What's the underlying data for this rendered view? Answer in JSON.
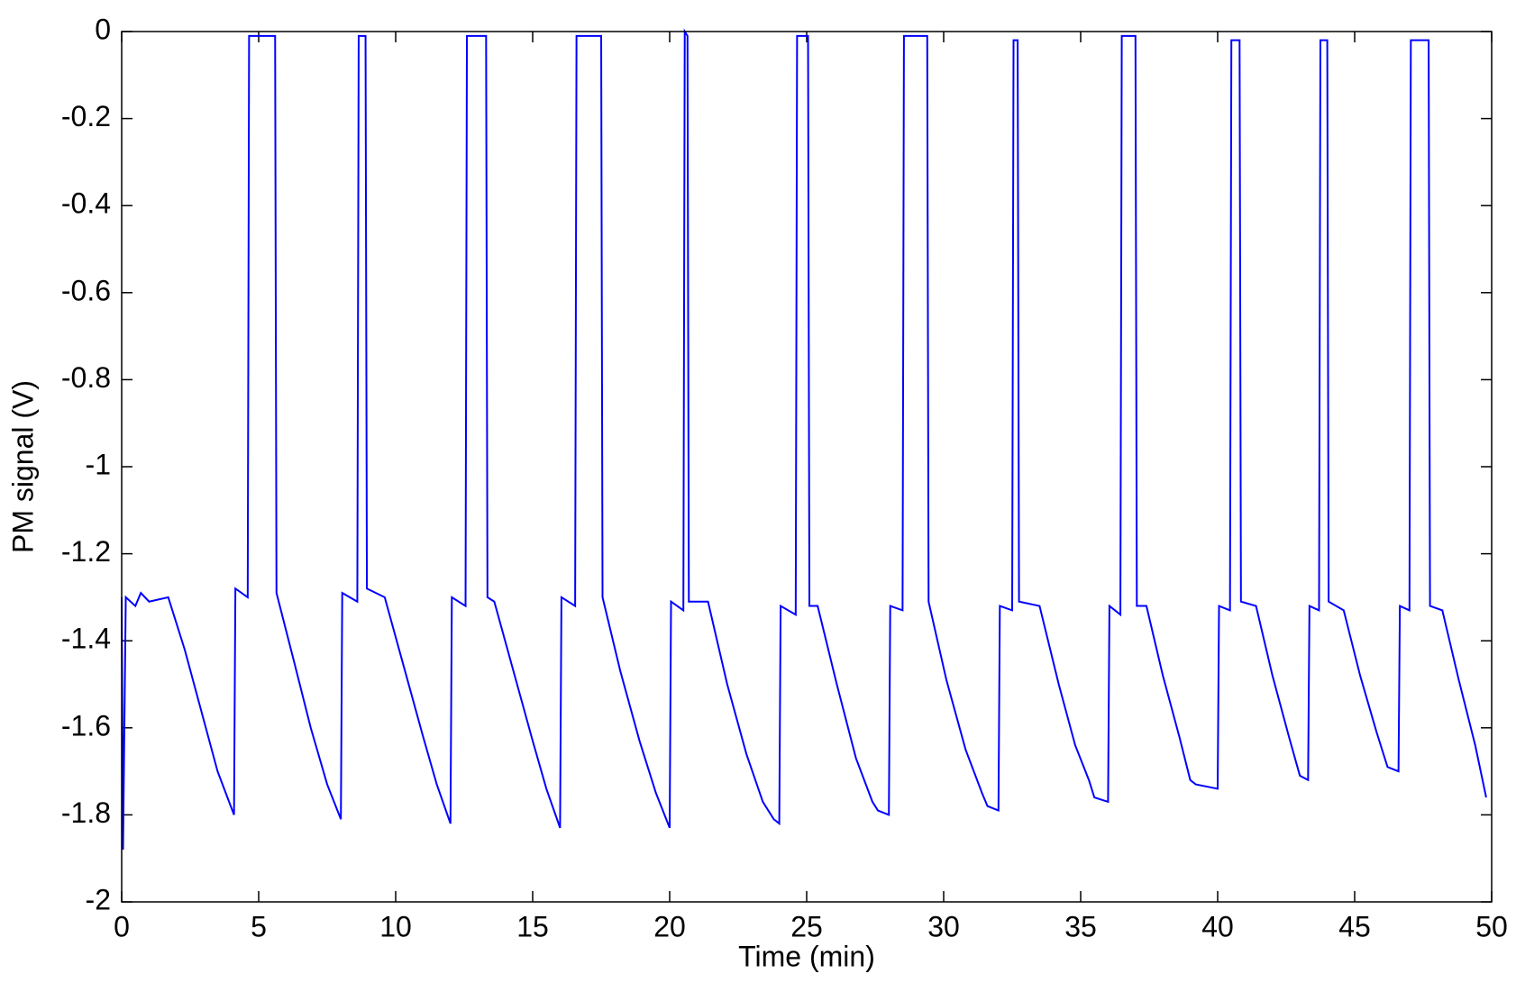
{
  "chart_data": {
    "type": "line",
    "xlabel": "Time (min)",
    "ylabel": "PM signal (V)",
    "color": "#0000ff",
    "xlim": [
      0,
      50
    ],
    "xticks": [
      0,
      5,
      10,
      15,
      20,
      25,
      30,
      35,
      40,
      45,
      50
    ],
    "ylim": [
      -2,
      0
    ],
    "yticks": [
      -2,
      -1.8,
      -1.6,
      -1.4,
      -1.2,
      -1,
      -0.8,
      -0.6,
      -0.4,
      -0.2,
      0
    ],
    "grid": false,
    "x": [
      0,
      0.05,
      0.15,
      0.5,
      0.7,
      1.0,
      1.7,
      2.3,
      2.9,
      3.5,
      4.1,
      4.15,
      4.6,
      4.65,
      5.6,
      5.65,
      6.3,
      6.9,
      7.5,
      8.0,
      8.05,
      8.6,
      8.65,
      8.9,
      8.95,
      9.6,
      10.3,
      11.0,
      11.5,
      12.0,
      12.05,
      12.55,
      12.6,
      13.3,
      13.35,
      13.6,
      14.3,
      15.0,
      15.5,
      16.0,
      16.05,
      16.55,
      16.6,
      17.5,
      17.55,
      18.2,
      18.9,
      19.5,
      20.0,
      20.05,
      20.5,
      20.55,
      20.65,
      20.7,
      21.4,
      22.1,
      22.8,
      23.4,
      23.8,
      24.0,
      24.05,
      24.6,
      24.65,
      25.05,
      25.1,
      25.4,
      26.1,
      26.8,
      27.4,
      27.6,
      28.0,
      28.05,
      28.5,
      28.55,
      29.4,
      29.45,
      30.1,
      30.8,
      31.4,
      31.6,
      32.0,
      32.05,
      32.5,
      32.55,
      32.7,
      32.75,
      33.5,
      34.2,
      34.8,
      35.3,
      35.5,
      36.0,
      36.05,
      36.45,
      36.5,
      37.0,
      37.05,
      37.4,
      38.0,
      38.6,
      39.0,
      39.2,
      40.0,
      40.05,
      40.45,
      40.5,
      40.8,
      40.85,
      41.4,
      42.0,
      42.6,
      43.0,
      43.3,
      43.35,
      43.7,
      43.75,
      44.0,
      44.05,
      44.6,
      45.2,
      45.8,
      46.2,
      46.6,
      46.65,
      47.0,
      47.05,
      47.7,
      47.75,
      48.2,
      48.8,
      49.4,
      49.8
    ],
    "values": [
      -1.3,
      -1.88,
      -1.3,
      -1.32,
      -1.29,
      -1.31,
      -1.3,
      -1.42,
      -1.56,
      -1.7,
      -1.8,
      -1.28,
      -1.3,
      -0.01,
      -0.01,
      -1.29,
      -1.45,
      -1.6,
      -1.73,
      -1.81,
      -1.29,
      -1.31,
      -0.01,
      -0.01,
      -1.28,
      -1.3,
      -1.46,
      -1.62,
      -1.73,
      -1.82,
      -1.3,
      -1.32,
      -0.01,
      -0.01,
      -1.3,
      -1.31,
      -1.47,
      -1.63,
      -1.74,
      -1.83,
      -1.3,
      -1.32,
      -0.01,
      -0.01,
      -1.3,
      -1.47,
      -1.63,
      -1.75,
      -1.83,
      -1.31,
      -1.33,
      0,
      -0.01,
      -1.31,
      -1.31,
      -1.5,
      -1.66,
      -1.77,
      -1.81,
      -1.82,
      -1.32,
      -1.34,
      -0.01,
      -0.01,
      -1.32,
      -1.32,
      -1.5,
      -1.67,
      -1.77,
      -1.79,
      -1.8,
      -1.32,
      -1.33,
      -0.01,
      -0.01,
      -1.31,
      -1.49,
      -1.65,
      -1.75,
      -1.78,
      -1.79,
      -1.32,
      -1.33,
      -0.02,
      -0.02,
      -1.31,
      -1.32,
      -1.5,
      -1.64,
      -1.72,
      -1.76,
      -1.77,
      -1.32,
      -1.34,
      -0.01,
      -0.01,
      -1.32,
      -1.32,
      -1.48,
      -1.62,
      -1.72,
      -1.73,
      -1.74,
      -1.32,
      -1.33,
      -0.02,
      -0.02,
      -1.31,
      -1.32,
      -1.48,
      -1.62,
      -1.71,
      -1.72,
      -1.32,
      -1.33,
      -0.02,
      -0.02,
      -1.31,
      -1.33,
      -1.48,
      -1.61,
      -1.69,
      -1.7,
      -1.32,
      -1.33,
      -0.02,
      -0.02,
      -1.32,
      -1.33,
      -1.49,
      -1.64,
      -1.76
    ]
  }
}
